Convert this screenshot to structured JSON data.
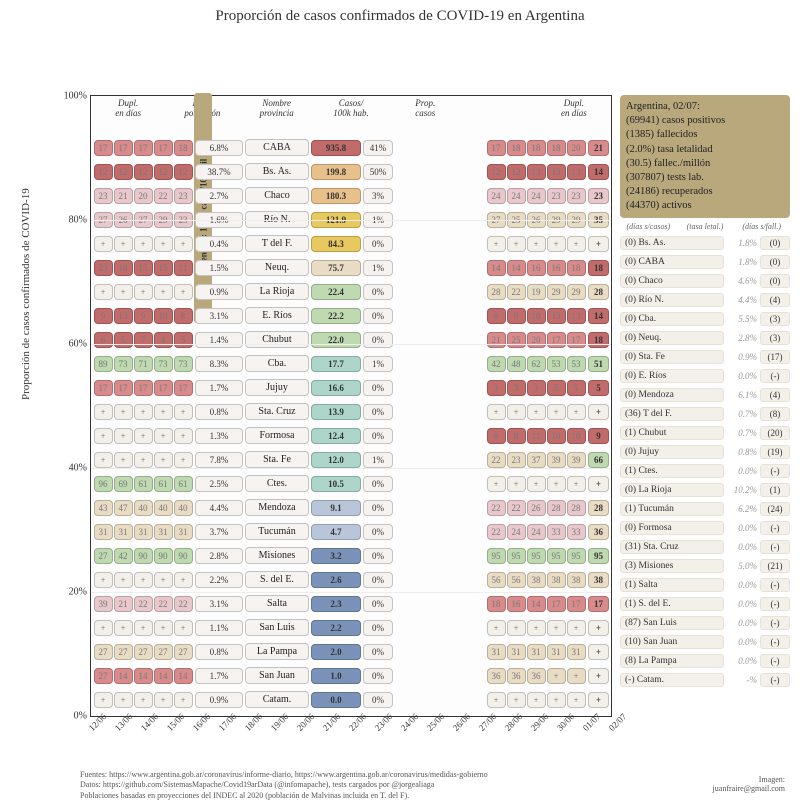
{
  "title": "Proporción de casos confirmados de COVID-19 en Argentina",
  "ylabel": "Proporción de casos confirmados de COVID-19",
  "yticks": [
    "100%",
    "80%",
    "60%",
    "40%",
    "20%",
    "0%"
  ],
  "xticks": [
    "12/06",
    "13/06",
    "14/06",
    "15/06",
    "16/06",
    "17/06",
    "18/06",
    "19/06",
    "20/06",
    "21/06",
    "22/06",
    "23/06",
    "24/06",
    "25/06",
    "26/06",
    "27/06",
    "28/06",
    "29/06",
    "30/06",
    "01/07",
    "02/07"
  ],
  "headers": {
    "dupl_l": "Dupl.",
    "dias_l": "en días",
    "prop_pob": "Prop.",
    "pob": "población",
    "nombre": "Nombre",
    "prov": "provincia",
    "per100": "Casos/",
    "per100b": "100k hab.",
    "prop_c": "Prop.",
    "casos": "casos",
    "dupl_r": "Dupl.",
    "dias_r": "en días"
  },
  "argbar": "Argentina: 154.1 casos/100 mil hab.",
  "colors": {
    "yellow": "#e8c960",
    "red": "#d98b8b",
    "pink": "#e8c8cc",
    "tan": "#e8dcc4",
    "green": "#bfd9b0",
    "teal": "#aed5c9",
    "blue": "#b9c6da",
    "dblue": "#7a91b8",
    "lgray": "#f3efe9",
    "dred": "#c26b6b",
    "orange": "#e8c08b"
  },
  "rows": [
    {
      "d": [
        "17",
        "17",
        "17",
        "17",
        "18"
      ],
      "dc": "red",
      "pp": "6.8%",
      "n": "CABA",
      "p100": "935.8",
      "p100c": "dred",
      "pc": "41%",
      "d2": [
        "17",
        "18",
        "18",
        "18",
        "20"
      ],
      "d2c": "red",
      "de": "21",
      "dec": "red"
    },
    {
      "d": [
        "12",
        "12",
        "12",
        "12",
        "12"
      ],
      "dc": "dred",
      "pp": "38.7%",
      "n": "Bs. As.",
      "p100": "199.8",
      "p100c": "orange",
      "pc": "50%",
      "d2": [
        "12",
        "12",
        "13",
        "13",
        "13"
      ],
      "d2c": "dred",
      "de": "14",
      "dec": "dred"
    },
    {
      "d": [
        "23",
        "21",
        "20",
        "22",
        "23"
      ],
      "dc": "pink",
      "pp": "2.7%",
      "n": "Chaco",
      "p100": "180.3",
      "p100c": "orange",
      "pc": "3%",
      "d2": [
        "24",
        "24",
        "24",
        "23",
        "23"
      ],
      "d2c": "pink",
      "de": "23",
      "dec": "pink"
    },
    {
      "d": [
        "27",
        "26",
        "27",
        "29",
        "23"
      ],
      "dc": "pink",
      "pp": "1.6%",
      "n": "Río N.",
      "p100": "121.9",
      "p100c": "yellow",
      "pc": "1%",
      "d2": [
        "27",
        "25",
        "26",
        "29",
        "29"
      ],
      "d2c": "tan",
      "de": "35",
      "dec": "tan"
    },
    {
      "d": [
        "+",
        "+",
        "+",
        "+",
        "+"
      ],
      "dc": "lgray",
      "pp": "0.4%",
      "n": "T del F.",
      "p100": "84.3",
      "p100c": "yellow",
      "pc": "0%",
      "d2": [
        "+",
        "+",
        "+",
        "+",
        "+"
      ],
      "d2c": "lgray",
      "de": "+",
      "dec": "lgray"
    },
    {
      "d": [
        "23",
        "18",
        "15",
        "15",
        "11"
      ],
      "dc": "dred",
      "pp": "1.5%",
      "n": "Neuq.",
      "p100": "75.7",
      "p100c": "tan",
      "pc": "1%",
      "d2": [
        "14",
        "14",
        "16",
        "16",
        "18"
      ],
      "d2c": "red",
      "de": "18",
      "dec": "dred"
    },
    {
      "d": [
        "+",
        "+",
        "+",
        "+",
        "+"
      ],
      "dc": "lgray",
      "pp": "0.9%",
      "n": "La Rioja",
      "p100": "22.4",
      "p100c": "green",
      "pc": "0%",
      "d2": [
        "28",
        "22",
        "19",
        "29",
        "29"
      ],
      "d2c": "tan",
      "de": "28",
      "dec": "tan"
    },
    {
      "d": [
        "9",
        "13",
        "9",
        "10",
        "8"
      ],
      "dc": "dred",
      "pp": "3.1%",
      "n": "E. Ríos",
      "p100": "22.2",
      "p100c": "green",
      "pc": "0%",
      "d2": [
        "8",
        "9",
        "10",
        "13",
        "13"
      ],
      "d2c": "dred",
      "de": "14",
      "dec": "dred"
    },
    {
      "d": [
        "6",
        "5",
        "7",
        "4",
        "5"
      ],
      "dc": "dred",
      "pp": "1.4%",
      "n": "Chubut",
      "p100": "22.0",
      "p100c": "green",
      "pc": "0%",
      "d2": [
        "21",
        "25",
        "20",
        "17",
        "17"
      ],
      "d2c": "red",
      "de": "18",
      "dec": "dred"
    },
    {
      "d": [
        "89",
        "73",
        "71",
        "73",
        "73"
      ],
      "dc": "green",
      "pp": "8.3%",
      "n": "Cba.",
      "p100": "17.7",
      "p100c": "teal",
      "pc": "1%",
      "d2": [
        "42",
        "48",
        "62",
        "53",
        "53"
      ],
      "d2c": "green",
      "de": "51",
      "dec": "green"
    },
    {
      "d": [
        "17",
        "17",
        "17",
        "17",
        "17"
      ],
      "dc": "red",
      "pp": "1.7%",
      "n": "Jujuy",
      "p100": "16.6",
      "p100c": "teal",
      "pc": "0%",
      "d2": [
        "3",
        "3",
        "3",
        "5",
        "5"
      ],
      "d2c": "dred",
      "de": "5",
      "dec": "dred"
    },
    {
      "d": [
        "+",
        "+",
        "+",
        "+",
        "+"
      ],
      "dc": "lgray",
      "pp": "0.8%",
      "n": "Sta. Cruz",
      "p100": "13.9",
      "p100c": "teal",
      "pc": "0%",
      "d2": [
        "+",
        "+",
        "+",
        "+",
        "+"
      ],
      "d2c": "lgray",
      "de": "+",
      "dec": "lgray"
    },
    {
      "d": [
        "+",
        "+",
        "+",
        "+",
        "+"
      ],
      "dc": "lgray",
      "pp": "1.3%",
      "n": "Formosa",
      "p100": "12.4",
      "p100c": "teal",
      "pc": "0%",
      "d2": [
        "8",
        "8",
        "11",
        "10",
        "10"
      ],
      "d2c": "dred",
      "de": "9",
      "dec": "dred"
    },
    {
      "d": [
        "+",
        "+",
        "+",
        "+",
        "+"
      ],
      "dc": "lgray",
      "pp": "7.8%",
      "n": "Sta. Fe",
      "p100": "12.0",
      "p100c": "teal",
      "pc": "1%",
      "d2": [
        "22",
        "23",
        "37",
        "39",
        "39"
      ],
      "d2c": "tan",
      "de": "66",
      "dec": "green"
    },
    {
      "d": [
        "96",
        "69",
        "61",
        "61",
        "61"
      ],
      "dc": "green",
      "pp": "2.5%",
      "n": "Ctes.",
      "p100": "10.5",
      "p100c": "teal",
      "pc": "0%",
      "d2": [
        "+",
        "+",
        "+",
        "+",
        "+"
      ],
      "d2c": "lgray",
      "de": "+",
      "dec": "lgray"
    },
    {
      "d": [
        "43",
        "47",
        "40",
        "40",
        "40"
      ],
      "dc": "tan",
      "pp": "4.4%",
      "n": "Mendoza",
      "p100": "9.1",
      "p100c": "blue",
      "pc": "0%",
      "d2": [
        "22",
        "22",
        "26",
        "28",
        "28"
      ],
      "d2c": "pink",
      "de": "28",
      "dec": "tan"
    },
    {
      "d": [
        "31",
        "31",
        "31",
        "31",
        "31"
      ],
      "dc": "tan",
      "pp": "3.7%",
      "n": "Tucumán",
      "p100": "4.7",
      "p100c": "blue",
      "pc": "0%",
      "d2": [
        "22",
        "24",
        "24",
        "33",
        "33"
      ],
      "d2c": "pink",
      "de": "36",
      "dec": "tan"
    },
    {
      "d": [
        "27",
        "42",
        "90",
        "90",
        "90"
      ],
      "dc": "green",
      "pp": "2.8%",
      "n": "Misiones",
      "p100": "3.2",
      "p100c": "dblue",
      "pc": "0%",
      "d2": [
        "95",
        "95",
        "95",
        "95",
        "95"
      ],
      "d2c": "green",
      "de": "95",
      "dec": "green"
    },
    {
      "d": [
        "+",
        "+",
        "+",
        "+",
        "+"
      ],
      "dc": "lgray",
      "pp": "2.2%",
      "n": "S. del E.",
      "p100": "2.6",
      "p100c": "dblue",
      "pc": "0%",
      "d2": [
        "56",
        "56",
        "38",
        "38",
        "38"
      ],
      "d2c": "tan",
      "de": "38",
      "dec": "tan"
    },
    {
      "d": [
        "39",
        "21",
        "22",
        "22",
        "22"
      ],
      "dc": "pink",
      "pp": "3.1%",
      "n": "Salta",
      "p100": "2.3",
      "p100c": "dblue",
      "pc": "0%",
      "d2": [
        "18",
        "16",
        "14",
        "17",
        "17"
      ],
      "d2c": "red",
      "de": "17",
      "dec": "red"
    },
    {
      "d": [
        "+",
        "+",
        "+",
        "+",
        "+"
      ],
      "dc": "lgray",
      "pp": "1.1%",
      "n": "San Luis",
      "p100": "2.2",
      "p100c": "dblue",
      "pc": "0%",
      "d2": [
        "+",
        "+",
        "+",
        "+",
        "+"
      ],
      "d2c": "lgray",
      "de": "+",
      "dec": "lgray"
    },
    {
      "d": [
        "27",
        "27",
        "27",
        "27",
        "27"
      ],
      "dc": "tan",
      "pp": "0.8%",
      "n": "La Pampa",
      "p100": "2.0",
      "p100c": "dblue",
      "pc": "0%",
      "d2": [
        "31",
        "31",
        "31",
        "31",
        "31"
      ],
      "d2c": "tan",
      "de": "+",
      "dec": "lgray"
    },
    {
      "d": [
        "27",
        "14",
        "14",
        "14",
        "14"
      ],
      "dc": "red",
      "pp": "1.7%",
      "n": "San Juan",
      "p100": "1.0",
      "p100c": "dblue",
      "pc": "0%",
      "d2": [
        "36",
        "36",
        "36",
        "+",
        "+"
      ],
      "d2c": "tan",
      "de": "+",
      "dec": "lgray"
    },
    {
      "d": [
        "+",
        "+",
        "+",
        "+",
        "+"
      ],
      "dc": "lgray",
      "pp": "0.9%",
      "n": "Catam.",
      "p100": "0.0",
      "p100c": "dblue",
      "pc": "0%",
      "d2": [
        "+",
        "+",
        "+",
        "+",
        "+"
      ],
      "d2c": "lgray",
      "de": "+",
      "dec": "lgray"
    }
  ],
  "infobox": [
    "Argentina, 02/07:",
    "(69941) casos positivos",
    "(1385) fallecidos",
    "(2.0%) tasa letalidad",
    "(30.5) fallec./millón",
    "(307807) tests lab.",
    "(24186) recuperados",
    "(44370) activos"
  ],
  "sideHeaders": [
    "(días s/casos)",
    "(tasa letal.)",
    "(días s/fall.)"
  ],
  "side": [
    {
      "c": "(0)",
      "n": "Bs. As.",
      "r": "1.8%",
      "f": "(0)"
    },
    {
      "c": "(0)",
      "n": "CABA",
      "r": "1.8%",
      "f": "(0)"
    },
    {
      "c": "(0)",
      "n": "Chaco",
      "r": "4.6%",
      "f": "(0)"
    },
    {
      "c": "(0)",
      "n": "Río N.",
      "r": "4.4%",
      "f": "(4)"
    },
    {
      "c": "(0)",
      "n": "Cba.",
      "r": "5.5%",
      "f": "(3)"
    },
    {
      "c": "(0)",
      "n": "Neuq.",
      "r": "2.8%",
      "f": "(3)"
    },
    {
      "c": "(0)",
      "n": "Sta. Fe",
      "r": "0.9%",
      "f": "(17)"
    },
    {
      "c": "(0)",
      "n": "E. Ríos",
      "r": "0.0%",
      "f": "(-)"
    },
    {
      "c": "(0)",
      "n": "Mendoza",
      "r": "6.1%",
      "f": "(4)"
    },
    {
      "c": "(36)",
      "n": "T del F.",
      "r": "0.7%",
      "f": "(8)"
    },
    {
      "c": "(1)",
      "n": "Chubut",
      "r": "0.7%",
      "f": "(20)"
    },
    {
      "c": "(0)",
      "n": "Jujuy",
      "r": "0.8%",
      "f": "(19)"
    },
    {
      "c": "(1)",
      "n": "Ctes.",
      "r": "0.0%",
      "f": "(-)"
    },
    {
      "c": "(0)",
      "n": "La Rioja",
      "r": "10.2%",
      "f": "(1)"
    },
    {
      "c": "(1)",
      "n": "Tucumán",
      "r": "6.2%",
      "f": "(24)"
    },
    {
      "c": "(0)",
      "n": "Formosa",
      "r": "0.0%",
      "f": "(-)"
    },
    {
      "c": "(31)",
      "n": "Sta. Cruz",
      "r": "0.0%",
      "f": "(-)"
    },
    {
      "c": "(3)",
      "n": "Misiones",
      "r": "5.0%",
      "f": "(21)"
    },
    {
      "c": "(1)",
      "n": "Salta",
      "r": "0.0%",
      "f": "(-)"
    },
    {
      "c": "(1)",
      "n": "S. del E.",
      "r": "0.0%",
      "f": "(-)"
    },
    {
      "c": "(87)",
      "n": "San Luis",
      "r": "0.0%",
      "f": "(-)"
    },
    {
      "c": "(10)",
      "n": "San Juan",
      "r": "0.0%",
      "f": "(-)"
    },
    {
      "c": "(8)",
      "n": "La Pampa",
      "r": "0.0%",
      "f": "(-)"
    },
    {
      "c": "(-)",
      "n": "Catam.",
      "r": "-%",
      "f": "(-)"
    }
  ],
  "foot": [
    "Fuentes: https://www.argentina.gob.ar/coronavirus/informe-diario, https://www.argentina.gob.ar/coronavirus/medidas-gobierno",
    "Datos: https://github.com/SistemasMapache/Covid19arData (@infomapache), tests cargados por @jorgealiaga",
    "Poblaciones basadas en proyecciones del INDEC al 2020 (población de Malvinas incluida en T. del F)."
  ],
  "imgby": [
    "Imagen:",
    "juanfraire@gmail.com"
  ]
}
